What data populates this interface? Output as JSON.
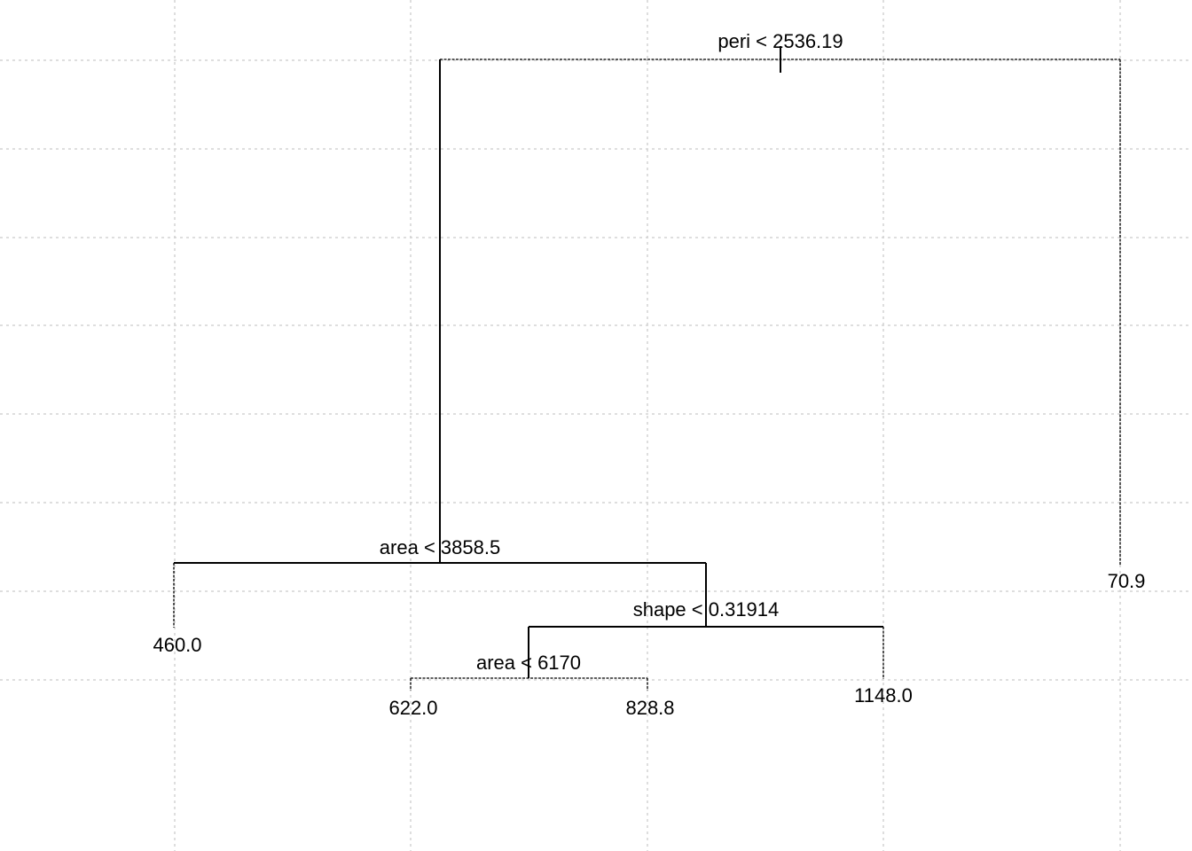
{
  "tree": {
    "splits": [
      {
        "id": "root",
        "label": "peri < 2536.19"
      },
      {
        "id": "left",
        "label": "area < 3858.5"
      },
      {
        "id": "left-right",
        "label": "shape < 0.31914"
      },
      {
        "id": "left-right-left",
        "label": "area < 6170"
      }
    ],
    "leaves": [
      {
        "id": "leaf-1",
        "label": "460.0"
      },
      {
        "id": "leaf-2",
        "label": "622.0"
      },
      {
        "id": "leaf-3",
        "label": "828.8"
      },
      {
        "id": "leaf-4",
        "label": "1148.0"
      },
      {
        "id": "leaf-5",
        "label": "70.9"
      }
    ]
  },
  "colors": {
    "grid": "#d3d3d3",
    "lines": "#000000",
    "text": "#000000",
    "background": "#ffffff"
  }
}
